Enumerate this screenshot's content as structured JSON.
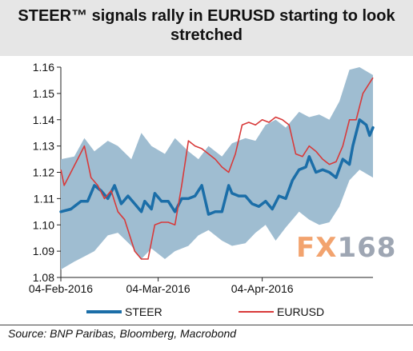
{
  "title": "STEER™ signals rally in EURUSD starting to look stretched",
  "source": "Source:  BNP Paribas, Bloomberg, Macrobond",
  "watermark": {
    "part1": "FX",
    "part2": "168"
  },
  "chart_data": {
    "type": "line",
    "xticks": [
      "04-Feb-2016",
      "04-Mar-2016",
      "04-Apr-2016"
    ],
    "yticks": [
      "1.16",
      "1.15",
      "1.14",
      "1.13",
      "1.12",
      "1.11",
      "1.10",
      "1.09",
      "1.08"
    ],
    "ylim": [
      1.08,
      1.16
    ],
    "x_range_days": [
      0,
      93
    ],
    "x_tick_days": [
      0,
      29,
      60
    ],
    "legend_position": "bottom",
    "band_upper": [
      [
        0,
        1.125
      ],
      [
        4,
        1.126
      ],
      [
        7,
        1.133
      ],
      [
        10,
        1.128
      ],
      [
        14,
        1.132
      ],
      [
        17,
        1.13
      ],
      [
        21,
        1.125
      ],
      [
        24,
        1.135
      ],
      [
        27,
        1.13
      ],
      [
        31,
        1.127
      ],
      [
        34,
        1.133
      ],
      [
        38,
        1.128
      ],
      [
        41,
        1.125
      ],
      [
        44,
        1.13
      ],
      [
        48,
        1.126
      ],
      [
        51,
        1.131
      ],
      [
        55,
        1.133
      ],
      [
        58,
        1.132
      ],
      [
        61,
        1.138
      ],
      [
        64,
        1.14
      ],
      [
        67,
        1.137
      ],
      [
        71,
        1.143
      ],
      [
        74,
        1.141
      ],
      [
        77,
        1.142
      ],
      [
        80,
        1.14
      ],
      [
        83,
        1.147
      ],
      [
        86,
        1.159
      ],
      [
        89,
        1.16
      ],
      [
        93,
        1.157
      ]
    ],
    "band_lower": [
      [
        0,
        1.083
      ],
      [
        4,
        1.086
      ],
      [
        7,
        1.088
      ],
      [
        10,
        1.09
      ],
      [
        14,
        1.096
      ],
      [
        17,
        1.097
      ],
      [
        21,
        1.092
      ],
      [
        24,
        1.087
      ],
      [
        27,
        1.091
      ],
      [
        31,
        1.087
      ],
      [
        34,
        1.09
      ],
      [
        38,
        1.092
      ],
      [
        41,
        1.096
      ],
      [
        44,
        1.098
      ],
      [
        48,
        1.094
      ],
      [
        51,
        1.092
      ],
      [
        55,
        1.093
      ],
      [
        58,
        1.097
      ],
      [
        61,
        1.1
      ],
      [
        64,
        1.094
      ],
      [
        67,
        1.099
      ],
      [
        71,
        1.105
      ],
      [
        74,
        1.102
      ],
      [
        77,
        1.1
      ],
      [
        80,
        1.101
      ],
      [
        83,
        1.107
      ],
      [
        86,
        1.117
      ],
      [
        89,
        1.121
      ],
      [
        93,
        1.118
      ]
    ],
    "series": [
      {
        "name": "STEER",
        "color": "#1b6ea8",
        "points": [
          [
            0,
            1.105
          ],
          [
            3,
            1.106
          ],
          [
            6,
            1.109
          ],
          [
            8,
            1.109
          ],
          [
            10,
            1.115
          ],
          [
            12,
            1.113
          ],
          [
            14,
            1.11
          ],
          [
            16,
            1.115
          ],
          [
            18,
            1.108
          ],
          [
            20,
            1.111
          ],
          [
            22,
            1.108
          ],
          [
            24,
            1.105
          ],
          [
            25,
            1.109
          ],
          [
            27,
            1.106
          ],
          [
            28,
            1.112
          ],
          [
            30,
            1.109
          ],
          [
            32,
            1.109
          ],
          [
            34,
            1.105
          ],
          [
            36,
            1.11
          ],
          [
            38,
            1.11
          ],
          [
            40,
            1.111
          ],
          [
            42,
            1.115
          ],
          [
            44,
            1.104
          ],
          [
            46,
            1.105
          ],
          [
            48,
            1.105
          ],
          [
            50,
            1.115
          ],
          [
            51,
            1.112
          ],
          [
            53,
            1.111
          ],
          [
            55,
            1.111
          ],
          [
            57,
            1.108
          ],
          [
            59,
            1.107
          ],
          [
            61,
            1.109
          ],
          [
            63,
            1.106
          ],
          [
            65,
            1.111
          ],
          [
            67,
            1.11
          ],
          [
            69,
            1.117
          ],
          [
            71,
            1.121
          ],
          [
            73,
            1.122
          ],
          [
            74,
            1.126
          ],
          [
            76,
            1.12
          ],
          [
            78,
            1.121
          ],
          [
            80,
            1.12
          ],
          [
            82,
            1.118
          ],
          [
            84,
            1.125
          ],
          [
            86,
            1.123
          ],
          [
            87,
            1.13
          ],
          [
            89,
            1.14
          ],
          [
            91,
            1.138
          ],
          [
            92,
            1.134
          ],
          [
            93,
            1.137
          ]
        ]
      },
      {
        "name": "EURUSD",
        "color": "#d83a3a",
        "points": [
          [
            0,
            1.121
          ],
          [
            1,
            1.115
          ],
          [
            3,
            1.12
          ],
          [
            5,
            1.125
          ],
          [
            7,
            1.13
          ],
          [
            9,
            1.118
          ],
          [
            11,
            1.115
          ],
          [
            13,
            1.11
          ],
          [
            15,
            1.113
          ],
          [
            17,
            1.105
          ],
          [
            19,
            1.102
          ],
          [
            20,
            1.098
          ],
          [
            22,
            1.09
          ],
          [
            24,
            1.087
          ],
          [
            26,
            1.087
          ],
          [
            28,
            1.1
          ],
          [
            30,
            1.101
          ],
          [
            32,
            1.101
          ],
          [
            34,
            1.1
          ],
          [
            36,
            1.115
          ],
          [
            38,
            1.132
          ],
          [
            40,
            1.13
          ],
          [
            42,
            1.129
          ],
          [
            44,
            1.127
          ],
          [
            46,
            1.125
          ],
          [
            48,
            1.122
          ],
          [
            50,
            1.12
          ],
          [
            52,
            1.127
          ],
          [
            54,
            1.138
          ],
          [
            56,
            1.139
          ],
          [
            58,
            1.138
          ],
          [
            60,
            1.14
          ],
          [
            62,
            1.139
          ],
          [
            64,
            1.141
          ],
          [
            66,
            1.14
          ],
          [
            68,
            1.138
          ],
          [
            70,
            1.127
          ],
          [
            72,
            1.126
          ],
          [
            74,
            1.13
          ],
          [
            76,
            1.128
          ],
          [
            78,
            1.125
          ],
          [
            80,
            1.123
          ],
          [
            82,
            1.124
          ],
          [
            84,
            1.13
          ],
          [
            86,
            1.14
          ],
          [
            88,
            1.14
          ],
          [
            90,
            1.15
          ],
          [
            92,
            1.154
          ],
          [
            93,
            1.156
          ]
        ]
      }
    ]
  }
}
